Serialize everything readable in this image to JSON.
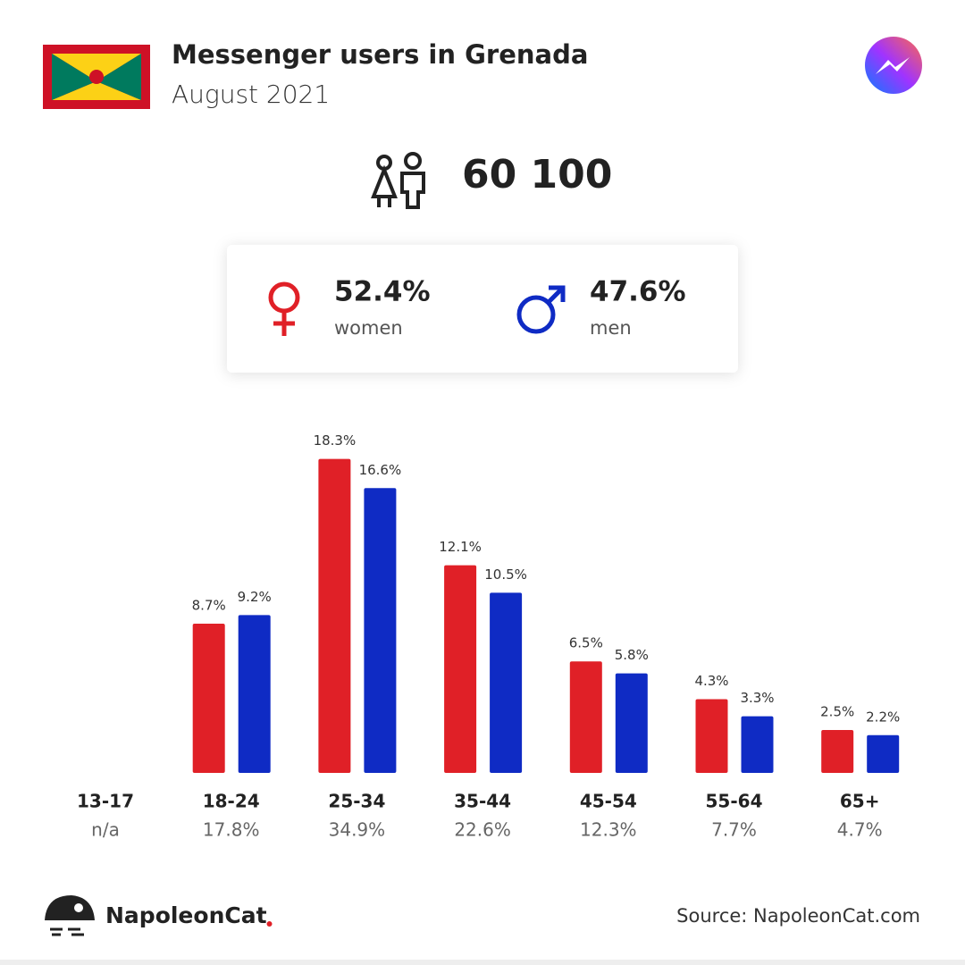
{
  "header": {
    "title": "Messenger users in Grenada",
    "subtitle": "August 2021"
  },
  "summary": {
    "total": "60 100",
    "women": {
      "share": "52.4%",
      "label": "women"
    },
    "men": {
      "share": "47.6%",
      "label": "men"
    }
  },
  "chart_data": {
    "type": "bar",
    "categories": [
      "13-17",
      "18-24",
      "25-34",
      "35-44",
      "45-54",
      "55-64",
      "65+"
    ],
    "series": [
      {
        "name": "women",
        "color": "#e02027",
        "values": [
          null,
          8.7,
          18.3,
          12.1,
          6.5,
          4.3,
          2.5
        ],
        "value_labels": [
          null,
          "8.7%",
          "18.3%",
          "12.1%",
          "6.5%",
          "4.3%",
          "2.5%"
        ]
      },
      {
        "name": "men",
        "color": "#0f2bc4",
        "values": [
          null,
          9.2,
          16.6,
          10.5,
          5.8,
          3.3,
          2.2
        ],
        "value_labels": [
          null,
          "9.2%",
          "16.6%",
          "10.5%",
          "5.8%",
          "3.3%",
          "2.2%"
        ]
      }
    ],
    "totals": [
      null,
      17.8,
      34.9,
      22.6,
      12.3,
      7.7,
      4.7
    ],
    "total_labels": [
      "n/a",
      "17.8%",
      "34.9%",
      "22.6%",
      "12.3%",
      "7.7%",
      "4.7%"
    ]
  },
  "footer": {
    "brand": "NapoleonCat",
    "source": "Source: NapoleonCat.com"
  }
}
